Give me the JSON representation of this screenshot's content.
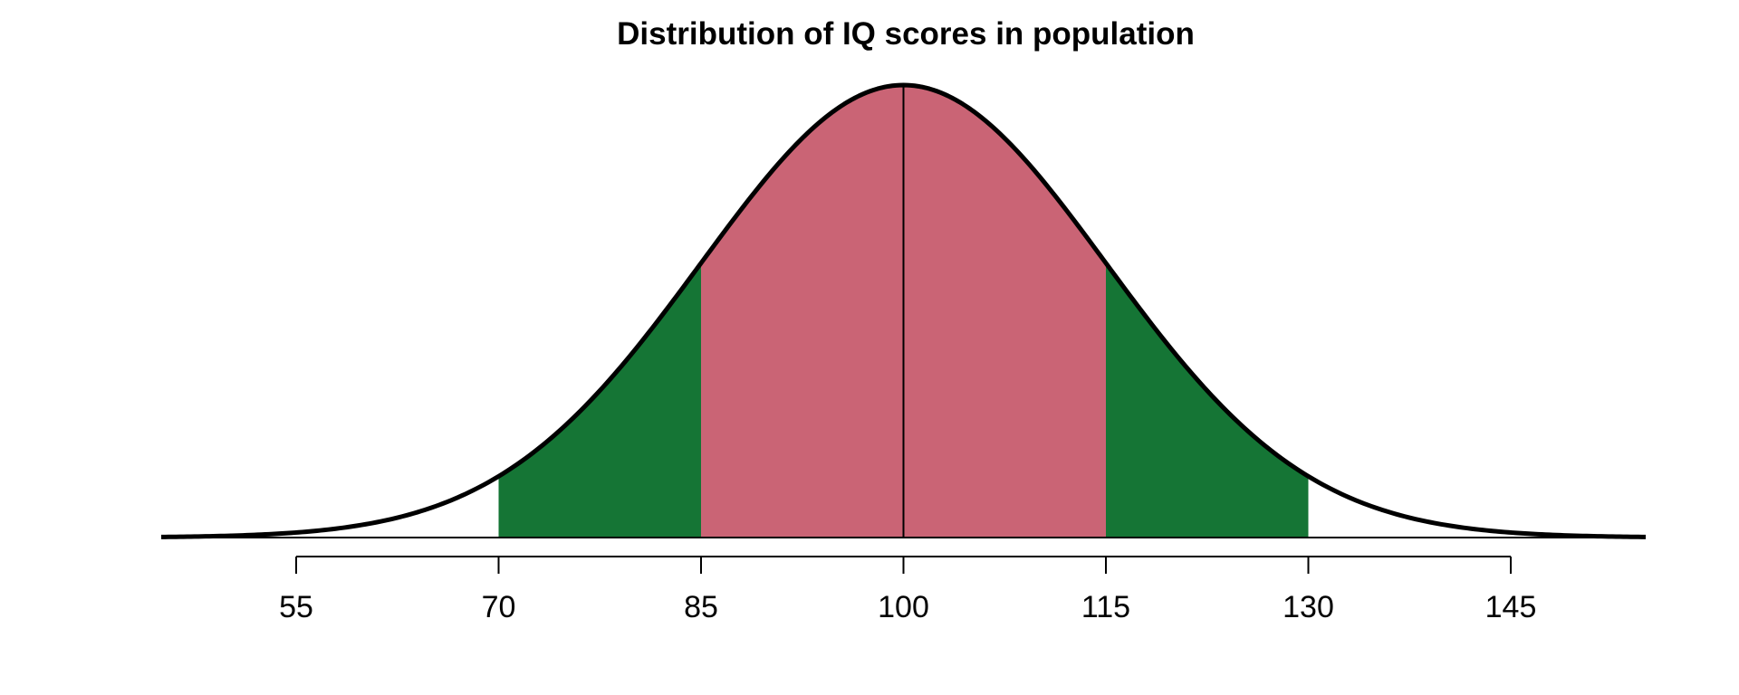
{
  "chart_data": {
    "type": "area",
    "title": "Distribution of IQ scores in population",
    "xlabel": "",
    "ylabel": "",
    "distribution": {
      "kind": "normal",
      "mean": 100,
      "sd": 15
    },
    "xlim": [
      45,
      155
    ],
    "x_ticks": [
      55,
      70,
      85,
      100,
      115,
      130,
      145
    ],
    "x_tick_labels": [
      "55",
      "70",
      "85",
      "100",
      "115",
      "130",
      "145"
    ],
    "y_axis_shown": false,
    "grid": false,
    "shaded_regions": [
      {
        "from": 70,
        "to": 85,
        "color": "#157535"
      },
      {
        "from": 85,
        "to": 115,
        "color": "#CA6475"
      },
      {
        "from": 115,
        "to": 130,
        "color": "#157535"
      }
    ],
    "mean_line": 100,
    "curve_color": "#000000"
  }
}
